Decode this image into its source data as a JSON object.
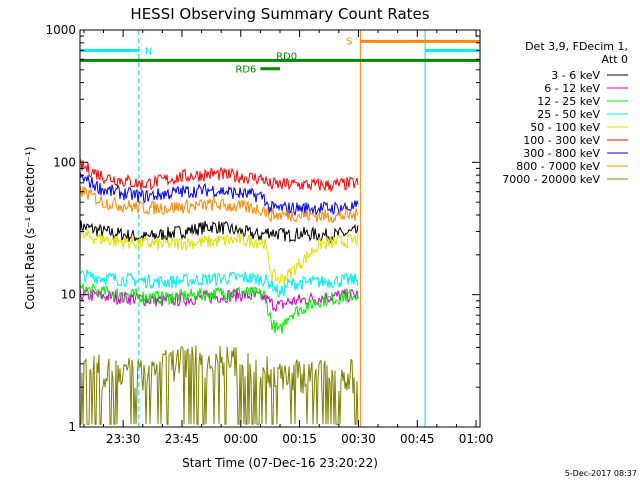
{
  "chart_data": {
    "type": "line",
    "title": "HESSI Observing Summary Count Rates",
    "xlabel": "Start Time (07-Dec-16 23:20:22)",
    "ylabel": "Count Rate (s⁻¹ detector⁻¹)",
    "ylim": [
      1,
      1000
    ],
    "yscale": "log",
    "xlim_minutes": [
      -1,
      101
    ],
    "x_ticks": [
      {
        "t": 10,
        "label": "23:30"
      },
      {
        "t": 25,
        "label": "23:45"
      },
      {
        "t": 40,
        "label": "00:00"
      },
      {
        "t": 55,
        "label": "00:15"
      },
      {
        "t": 70,
        "label": "00:30"
      },
      {
        "t": 85,
        "label": "00:45"
      },
      {
        "t": 100,
        "label": "01:00"
      }
    ],
    "y_ticks": [
      {
        "v": 1,
        "label": "1"
      },
      {
        "v": 10,
        "label": "10"
      },
      {
        "v": 100,
        "label": "100"
      },
      {
        "v": 1000,
        "label": "1000"
      }
    ],
    "legend_header": [
      "Det 3,9, FDecim 1,",
      "Att 0"
    ],
    "legend_position": "right",
    "series": [
      {
        "name": "3 - 6 keV",
        "color": "#000000",
        "values": [
          [
            -1,
            33
          ],
          [
            5,
            30
          ],
          [
            15,
            27
          ],
          [
            25,
            30
          ],
          [
            33,
            33
          ],
          [
            40,
            30
          ],
          [
            45,
            28
          ],
          [
            47,
            30
          ],
          [
            52,
            28
          ],
          [
            55,
            29
          ],
          [
            63,
            28
          ],
          [
            70,
            30
          ]
        ]
      },
      {
        "name": "6 - 12 keV",
        "color": "#cc00cc",
        "values": [
          [
            -1,
            10
          ],
          [
            10,
            9.5
          ],
          [
            20,
            9
          ],
          [
            30,
            9.5
          ],
          [
            40,
            10
          ],
          [
            46,
            9.5
          ],
          [
            48,
            8.5
          ],
          [
            50,
            8.2
          ],
          [
            52,
            8.8
          ],
          [
            60,
            9.5
          ],
          [
            70,
            10
          ]
        ]
      },
      {
        "name": "12 - 25 keV",
        "color": "#00ee00",
        "values": [
          [
            -1,
            11
          ],
          [
            10,
            10
          ],
          [
            20,
            9.5
          ],
          [
            30,
            10
          ],
          [
            40,
            10.5
          ],
          [
            46,
            10
          ],
          [
            48,
            6
          ],
          [
            50,
            5.2
          ],
          [
            52,
            7
          ],
          [
            60,
            9
          ],
          [
            70,
            10
          ]
        ]
      },
      {
        "name": "25 - 50 keV",
        "color": "#00eeee",
        "values": [
          [
            -1,
            14
          ],
          [
            10,
            13
          ],
          [
            20,
            12.5
          ],
          [
            30,
            13
          ],
          [
            40,
            13.5
          ],
          [
            46,
            13
          ],
          [
            48,
            12
          ],
          [
            50,
            10
          ],
          [
            52,
            12
          ],
          [
            60,
            12.5
          ],
          [
            70,
            13
          ]
        ]
      },
      {
        "name": "50 - 100 keV",
        "color": "#e0e000",
        "values": [
          [
            -1,
            28
          ],
          [
            10,
            25
          ],
          [
            20,
            24
          ],
          [
            30,
            25
          ],
          [
            40,
            26
          ],
          [
            46,
            25
          ],
          [
            48,
            14
          ],
          [
            50,
            13
          ],
          [
            52,
            14
          ],
          [
            60,
            24
          ],
          [
            70,
            26
          ]
        ]
      },
      {
        "name": "100 - 300 keV",
        "color": "#ff0000",
        "values": [
          [
            -1,
            95
          ],
          [
            5,
            78
          ],
          [
            15,
            68
          ],
          [
            25,
            78
          ],
          [
            33,
            82
          ],
          [
            40,
            78
          ],
          [
            46,
            75
          ],
          [
            47,
            68
          ],
          [
            55,
            68
          ],
          [
            63,
            67
          ],
          [
            70,
            70
          ]
        ]
      },
      {
        "name": "300 - 800 keV",
        "color": "#0000ff",
        "values": [
          [
            -1,
            78
          ],
          [
            5,
            62
          ],
          [
            15,
            55
          ],
          [
            25,
            60
          ],
          [
            33,
            62
          ],
          [
            40,
            58
          ],
          [
            46,
            55
          ],
          [
            47,
            45
          ],
          [
            55,
            45
          ],
          [
            63,
            45
          ],
          [
            70,
            46
          ]
        ]
      },
      {
        "name": "800 - 7000 keV",
        "color": "#ff8800",
        "values": [
          [
            -1,
            62
          ],
          [
            5,
            50
          ],
          [
            15,
            45
          ],
          [
            25,
            46
          ],
          [
            33,
            48
          ],
          [
            40,
            46
          ],
          [
            46,
            44
          ],
          [
            47,
            40
          ],
          [
            55,
            40
          ],
          [
            63,
            39
          ],
          [
            70,
            40
          ]
        ]
      },
      {
        "name": "7000 - 20000 keV",
        "color": "#808000",
        "values": [
          [
            -1,
            3
          ],
          [
            5,
            2.6
          ],
          [
            15,
            2.5
          ],
          [
            25,
            3.2
          ],
          [
            33,
            3.3
          ],
          [
            40,
            3
          ],
          [
            46,
            2.6
          ],
          [
            55,
            2.5
          ],
          [
            63,
            2.4
          ],
          [
            70,
            2.5
          ]
        ]
      }
    ],
    "annotations": {
      "vlines": [
        {
          "t": -1,
          "color": "#00dddd",
          "dash": false
        },
        {
          "t": 14,
          "color": "#00dddd",
          "dash": true
        },
        {
          "t": 70.5,
          "color": "#ff8800",
          "dash": false
        },
        {
          "t": 87,
          "color": "#00dddd",
          "dash": false
        },
        {
          "t": 101,
          "color": "#ff8800",
          "dash": true
        }
      ],
      "bars": [
        {
          "label": "N",
          "color": "#00eeee",
          "t0": -1,
          "t1": 14,
          "v": 700
        },
        {
          "label": "",
          "color": "#00eeee",
          "t0": 87,
          "t1": 101,
          "v": 700
        },
        {
          "label": "S",
          "color": "#ff8800",
          "t0": 70.5,
          "t1": 101,
          "v": 820
        },
        {
          "label": "RD0",
          "color": "#008800",
          "t0": -1,
          "t1": 101,
          "v": 590
        },
        {
          "label": "RD6",
          "color": "#008800",
          "t0": 45,
          "t1": 50,
          "v": 510
        }
      ]
    }
  },
  "stamp": "5-Dec-2017 08:37"
}
